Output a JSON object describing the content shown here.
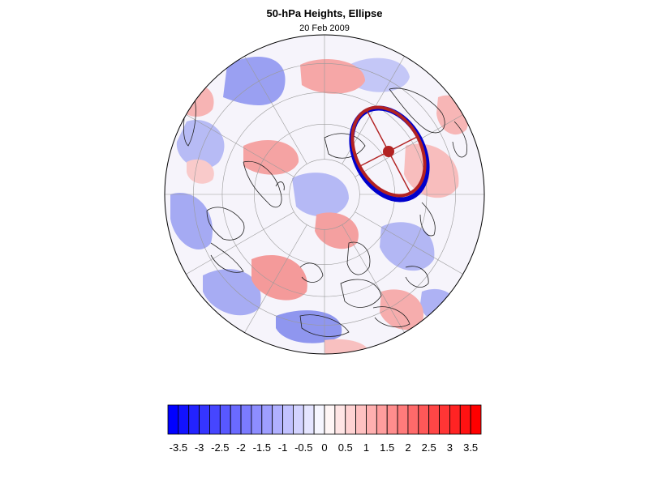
{
  "title": "50-hPa Heights, Ellipse",
  "subtitle": "20 Feb 2009",
  "colorbar": {
    "levels": [
      -3.75,
      -3.5,
      -3.25,
      -3,
      -2.75,
      -2.5,
      -2.25,
      -2,
      -1.75,
      -1.5,
      -1.25,
      -1,
      -0.75,
      -0.5,
      -0.25,
      0,
      0.25,
      0.5,
      0.75,
      1,
      1.25,
      1.5,
      1.75,
      2,
      2.25,
      2.5,
      2.75,
      3,
      3.25,
      3.5,
      3.75
    ],
    "labels": [
      "-3.5",
      "-3",
      "-2.5",
      "-2",
      "-1.5",
      "-1",
      "-0.5",
      "0",
      "0.5",
      "1",
      "1.5",
      "2",
      "2.5",
      "3",
      "3.5"
    ],
    "neg_color": "#0000ff",
    "pos_color": "#ff0000",
    "mid_color": "#ffffff"
  },
  "map": {
    "projection": "polar orthographic, North Pole",
    "ellipse_color": "#b22222",
    "ellipse_outline_color": "#0000cc"
  }
}
